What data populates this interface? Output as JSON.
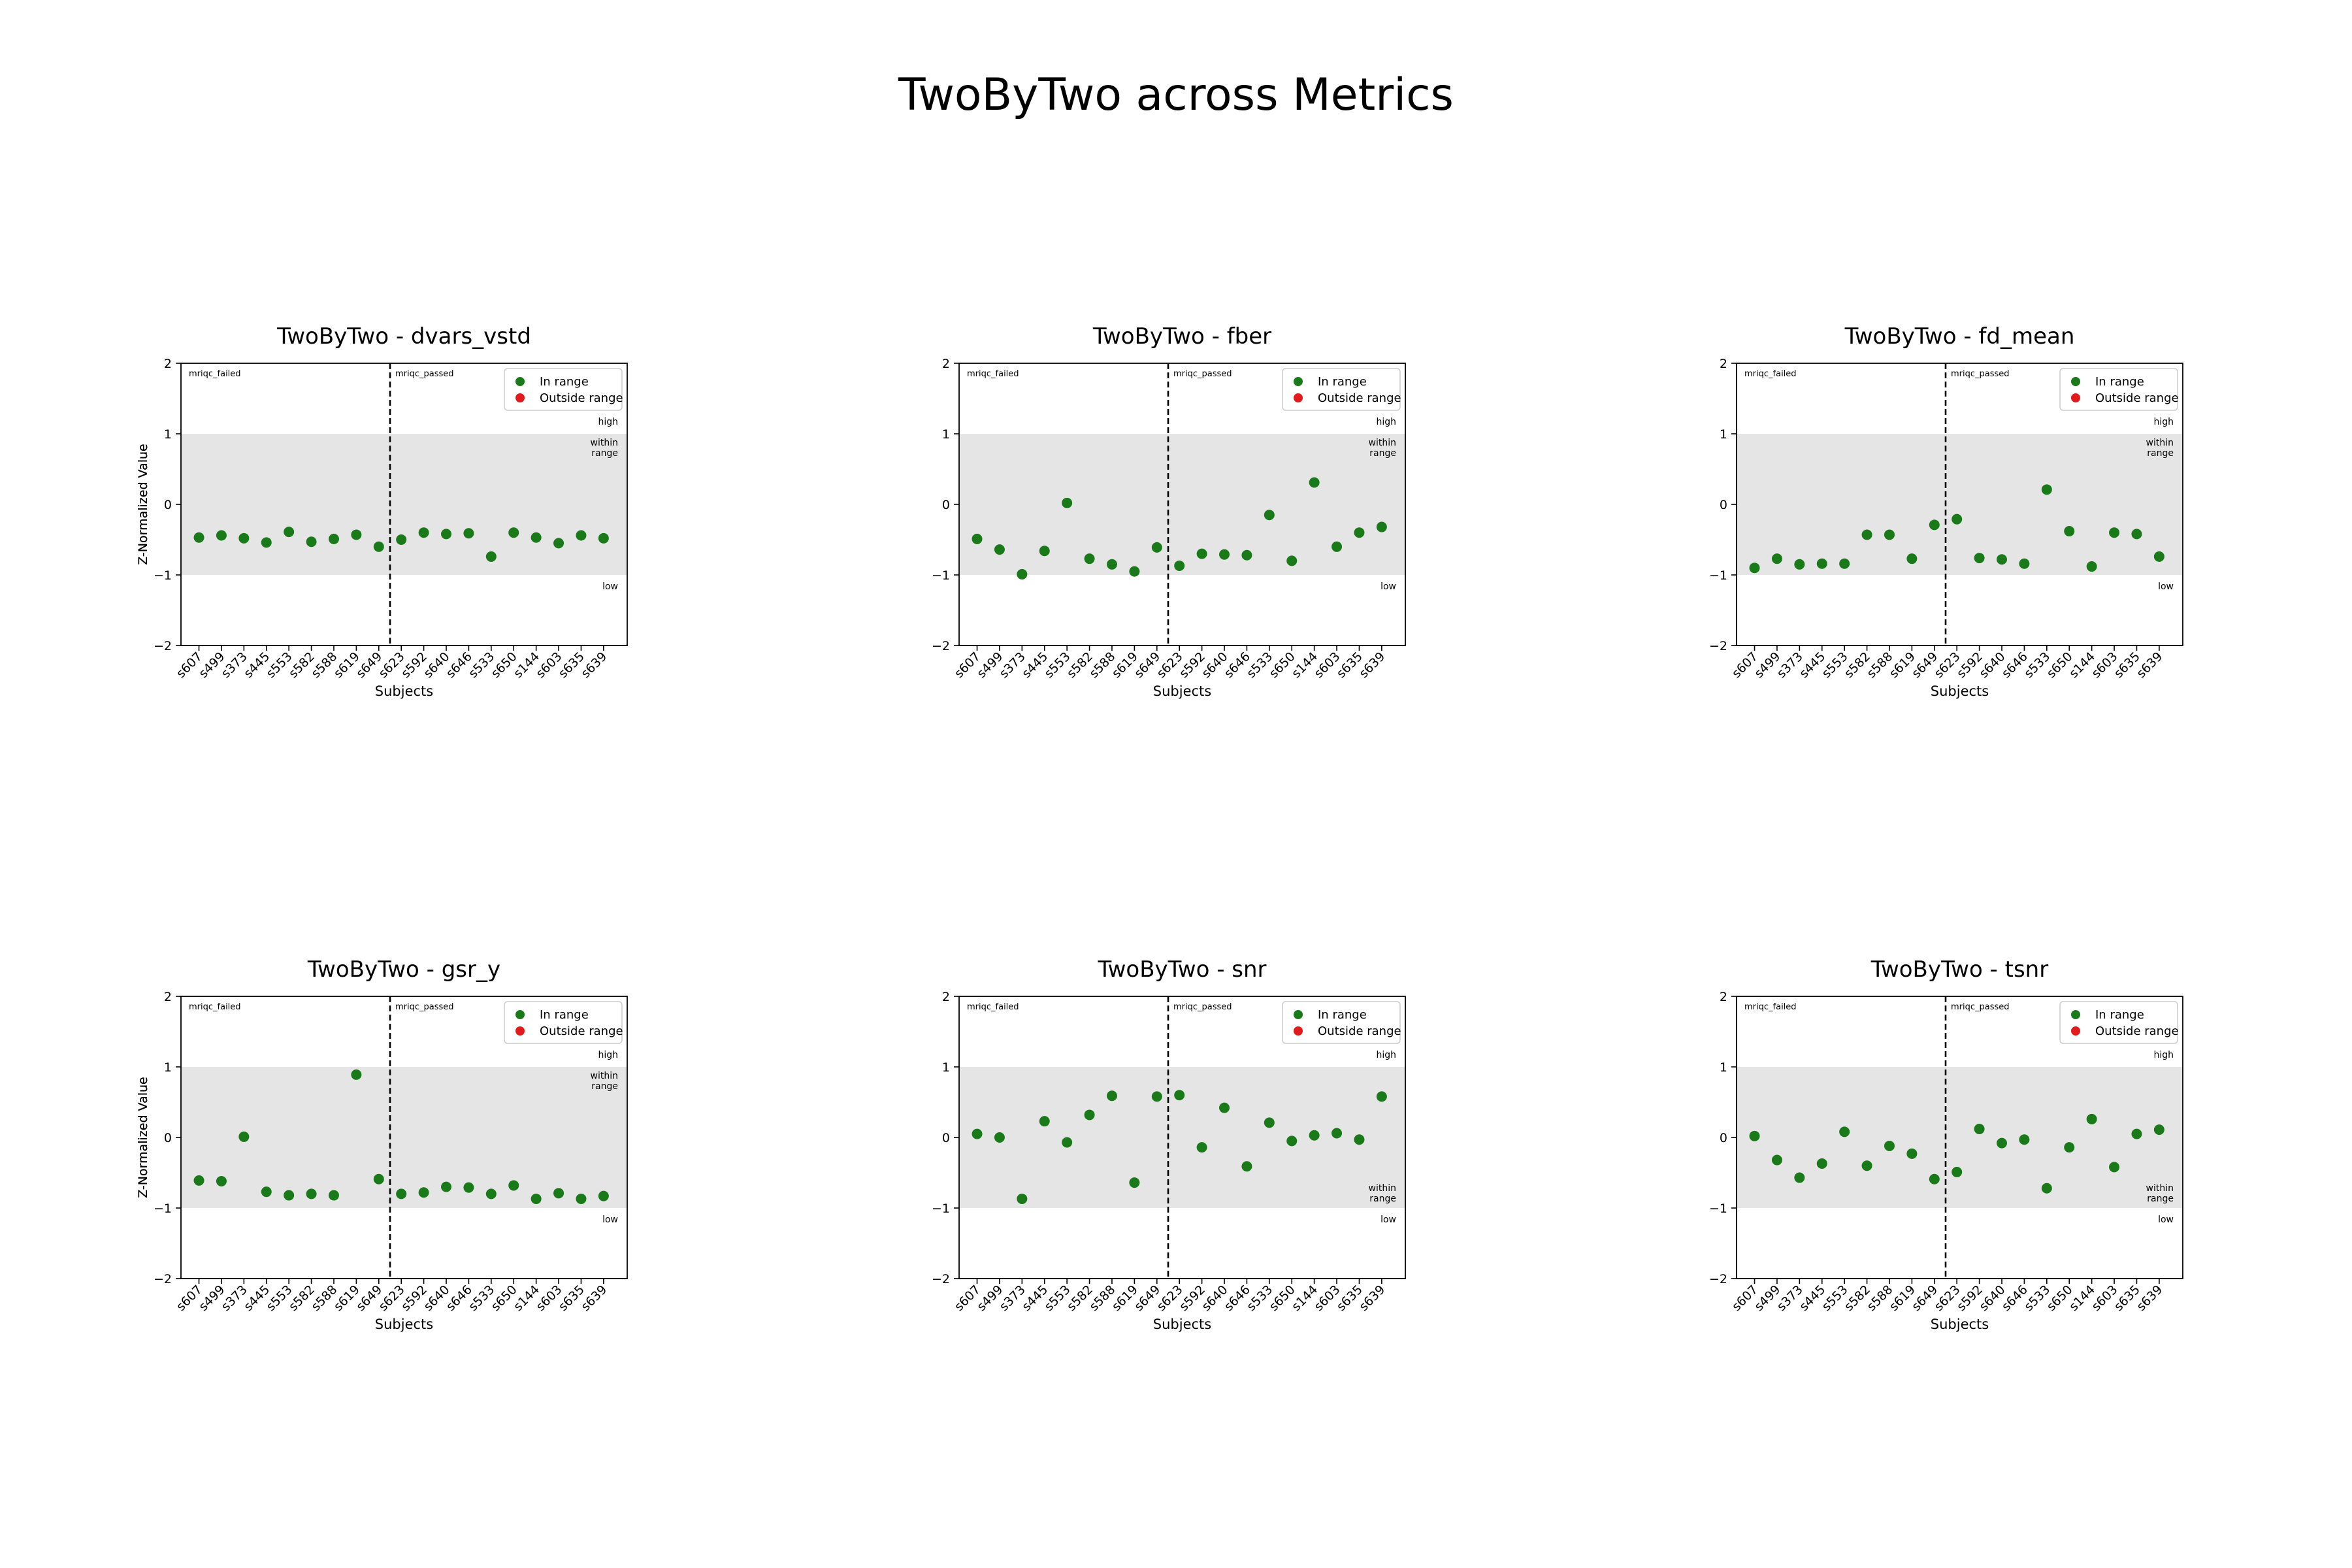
{
  "figure": {
    "title": "TwoByTwo across Metrics"
  },
  "legend": {
    "in_range": "In range",
    "outside_range": "Outside range",
    "in_color": "#1a7a1a",
    "out_color": "#e31a1c"
  },
  "region_labels": {
    "failed": "mriqc_failed",
    "passed": "mriqc_passed",
    "high": "high",
    "within_line1": "within",
    "within_line2": "range",
    "low": "low"
  },
  "chart_data": [
    {
      "type": "scatter",
      "title": "TwoByTwo - dvars_vstd",
      "xlabel": "Subjects",
      "ylabel": "Z-Normalized Value",
      "ylim": [
        -2,
        2
      ],
      "yticks": [
        -2,
        -1,
        0,
        1,
        2
      ],
      "x": [
        "s607",
        "s499",
        "s373",
        "s445",
        "s553",
        "s582",
        "s588",
        "s619",
        "s649",
        "s623",
        "s592",
        "s640",
        "s646",
        "s533",
        "s650",
        "s144",
        "s603",
        "s635",
        "s639"
      ],
      "values": [
        -0.47,
        -0.44,
        -0.48,
        -0.54,
        -0.39,
        -0.53,
        -0.49,
        -0.43,
        -0.6,
        -0.5,
        -0.4,
        -0.42,
        -0.41,
        -0.74,
        -0.4,
        -0.47,
        -0.55,
        -0.44,
        -0.48
      ],
      "split_after_index": 8,
      "within_range": [
        -1,
        1
      ],
      "within_label_pos": "top",
      "legend_position": "upper right"
    },
    {
      "type": "scatter",
      "title": "TwoByTwo - fber",
      "xlabel": "Subjects",
      "ylabel": "Z-Normalized Value",
      "ylim": [
        -2,
        2
      ],
      "yticks": [
        -2,
        -1,
        0,
        1,
        2
      ],
      "x": [
        "s607",
        "s499",
        "s373",
        "s445",
        "s553",
        "s582",
        "s588",
        "s619",
        "s649",
        "s623",
        "s592",
        "s640",
        "s646",
        "s533",
        "s650",
        "s144",
        "s603",
        "s635",
        "s639"
      ],
      "values": [
        -0.49,
        -0.64,
        -0.99,
        -0.66,
        0.02,
        -0.77,
        -0.85,
        -0.95,
        -0.61,
        -0.87,
        -0.7,
        -0.71,
        -0.72,
        -0.15,
        -0.8,
        0.31,
        -0.6,
        -0.4,
        -0.32
      ],
      "split_after_index": 8,
      "within_range": [
        -1,
        1
      ],
      "within_label_pos": "top",
      "legend_position": "upper right"
    },
    {
      "type": "scatter",
      "title": "TwoByTwo - fd_mean",
      "xlabel": "Subjects",
      "ylabel": "Z-Normalized Value",
      "ylim": [
        -2,
        2
      ],
      "yticks": [
        -2,
        -1,
        0,
        1,
        2
      ],
      "x": [
        "s607",
        "s499",
        "s373",
        "s445",
        "s553",
        "s582",
        "s588",
        "s619",
        "s649",
        "s623",
        "s592",
        "s640",
        "s646",
        "s533",
        "s650",
        "s144",
        "s603",
        "s635",
        "s639"
      ],
      "values": [
        -0.9,
        -0.77,
        -0.85,
        -0.84,
        -0.84,
        -0.43,
        -0.43,
        -0.77,
        -0.29,
        -0.21,
        -0.76,
        -0.78,
        -0.84,
        0.21,
        -0.38,
        -0.88,
        -0.4,
        -0.42,
        -0.74
      ],
      "split_after_index": 8,
      "within_range": [
        -1,
        1
      ],
      "within_label_pos": "top",
      "legend_position": "upper right"
    },
    {
      "type": "scatter",
      "title": "TwoByTwo - gsr_y",
      "xlabel": "Subjects",
      "ylabel": "Z-Normalized Value",
      "ylim": [
        -2,
        2
      ],
      "yticks": [
        -2,
        -1,
        0,
        1,
        2
      ],
      "x": [
        "s607",
        "s499",
        "s373",
        "s445",
        "s553",
        "s582",
        "s588",
        "s619",
        "s649",
        "s623",
        "s592",
        "s640",
        "s646",
        "s533",
        "s650",
        "s144",
        "s603",
        "s635",
        "s639"
      ],
      "values": [
        -0.61,
        -0.62,
        0.01,
        -0.77,
        -0.82,
        -0.8,
        -0.82,
        0.89,
        -0.59,
        -0.8,
        -0.78,
        -0.7,
        -0.71,
        -0.8,
        -0.68,
        -0.87,
        -0.79,
        -0.87,
        -0.83
      ],
      "split_after_index": 8,
      "within_range": [
        -1,
        1
      ],
      "within_label_pos": "top",
      "legend_position": "upper right"
    },
    {
      "type": "scatter",
      "title": "TwoByTwo - snr",
      "xlabel": "Subjects",
      "ylabel": "Z-Normalized Value",
      "ylim": [
        -2,
        2
      ],
      "yticks": [
        -2,
        -1,
        0,
        1,
        2
      ],
      "x": [
        "s607",
        "s499",
        "s373",
        "s445",
        "s553",
        "s582",
        "s588",
        "s619",
        "s649",
        "s623",
        "s592",
        "s640",
        "s646",
        "s533",
        "s650",
        "s144",
        "s603",
        "s635",
        "s639"
      ],
      "values": [
        0.05,
        0.0,
        -0.87,
        0.23,
        -0.07,
        0.32,
        0.59,
        -0.64,
        0.58,
        0.6,
        -0.14,
        0.42,
        -0.41,
        0.21,
        -0.05,
        0.03,
        0.06,
        -0.03,
        0.58
      ],
      "split_after_index": 8,
      "within_range": [
        -1,
        1
      ],
      "within_label_pos": "bottom",
      "legend_position": "upper right"
    },
    {
      "type": "scatter",
      "title": "TwoByTwo - tsnr",
      "xlabel": "Subjects",
      "ylabel": "Z-Normalized Value",
      "ylim": [
        -2,
        2
      ],
      "yticks": [
        -2,
        -1,
        0,
        1,
        2
      ],
      "x": [
        "s607",
        "s499",
        "s373",
        "s445",
        "s553",
        "s582",
        "s588",
        "s619",
        "s649",
        "s623",
        "s592",
        "s640",
        "s646",
        "s533",
        "s650",
        "s144",
        "s603",
        "s635",
        "s639"
      ],
      "values": [
        0.02,
        -0.32,
        -0.57,
        -0.37,
        0.08,
        -0.4,
        -0.12,
        -0.23,
        -0.59,
        -0.49,
        0.12,
        -0.08,
        -0.03,
        -0.72,
        -0.14,
        0.26,
        -0.42,
        0.05,
        0.11
      ],
      "split_after_index": 8,
      "within_range": [
        -1,
        1
      ],
      "within_label_pos": "bottom",
      "legend_position": "upper right"
    }
  ]
}
